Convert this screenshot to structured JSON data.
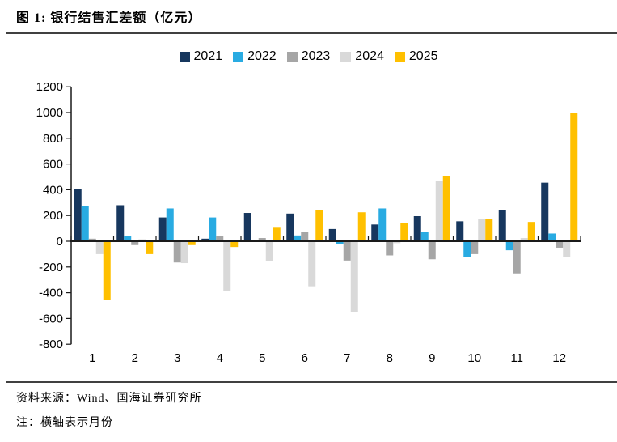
{
  "figure": {
    "title": "图 1: 银行结售汇差额（亿元）",
    "source": "资料来源：Wind、国海证券研究所",
    "note": "注：横轴表示月份"
  },
  "chart_data": {
    "type": "bar",
    "title": "银行结售汇差额（亿元）",
    "xlabel": "月份",
    "ylabel": "",
    "categories": [
      "1",
      "2",
      "3",
      "4",
      "5",
      "6",
      "7",
      "8",
      "9",
      "10",
      "11",
      "12"
    ],
    "series": [
      {
        "name": "2021",
        "color": "#17375E",
        "values": [
          405,
          280,
          185,
          20,
          220,
          215,
          95,
          130,
          195,
          155,
          240,
          455
        ]
      },
      {
        "name": "2022",
        "color": "#29ABE2",
        "values": [
          275,
          40,
          255,
          185,
          10,
          45,
          -20,
          255,
          75,
          -125,
          -70,
          60
        ]
      },
      {
        "name": "2023",
        "color": "#A6A6A6",
        "values": [
          20,
          -30,
          -165,
          40,
          25,
          70,
          -150,
          -110,
          -140,
          -100,
          -250,
          -50
        ]
      },
      {
        "name": "2024",
        "color": "#D9D9D9",
        "values": [
          -100,
          15,
          -170,
          -385,
          -155,
          -350,
          -550,
          -15,
          470,
          175,
          25,
          -120
        ]
      },
      {
        "name": "2025",
        "color": "#FFC000",
        "values": [
          -455,
          -100,
          -30,
          -45,
          105,
          245,
          225,
          140,
          505,
          170,
          150,
          1000
        ]
      }
    ],
    "ylim": [
      -800,
      1200
    ],
    "ytick_step": 200,
    "grid": false,
    "legend_position": "top",
    "axis_color": "#1a1a1a",
    "text_color": "#000000"
  }
}
